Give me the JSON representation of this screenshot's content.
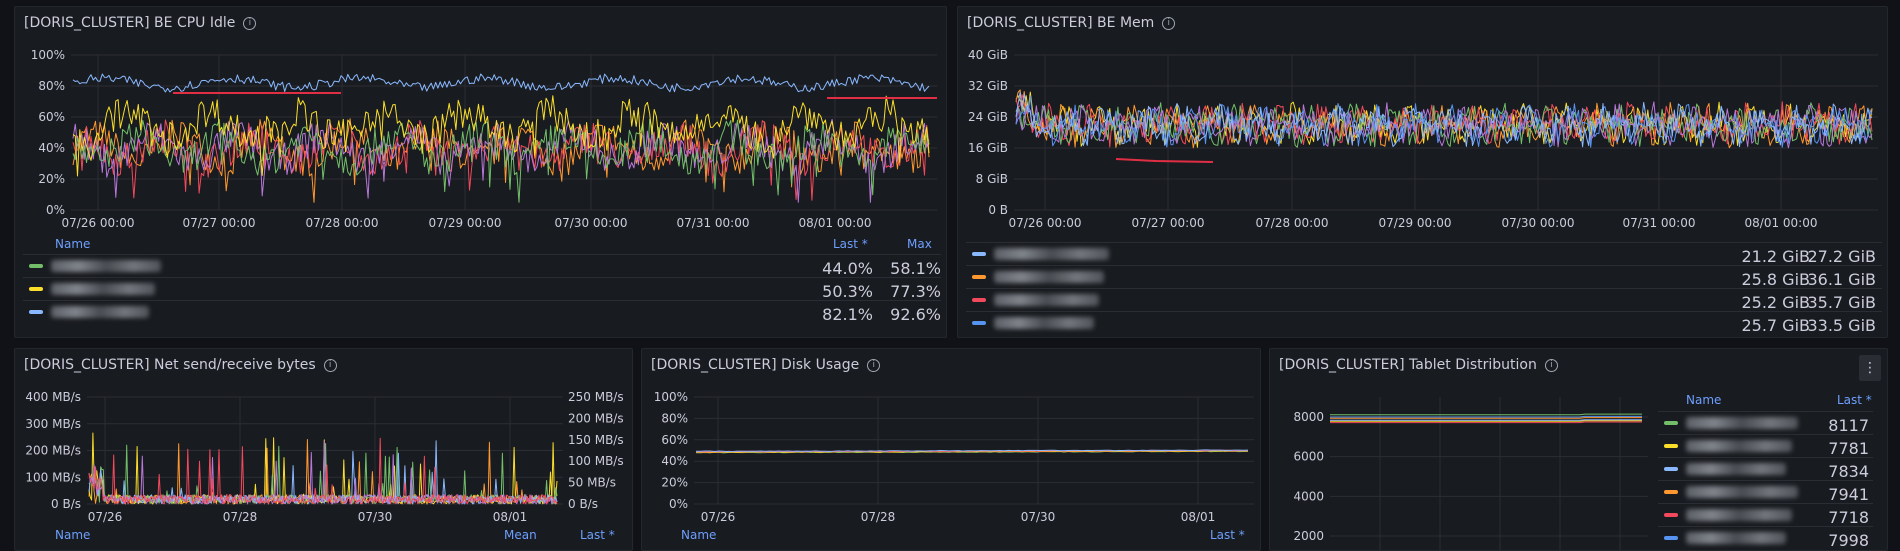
{
  "colors": {
    "green": "#73bf69",
    "yellow": "#fade2a",
    "blue": "#8ab8ff",
    "orange": "#ff9830",
    "red": "#f2495c",
    "blue2": "#5794f2",
    "purple": "#b877d9",
    "annot": "#e02f44"
  },
  "panels": {
    "cpu": {
      "title": "[DORIS_CLUSTER] BE CPU Idle",
      "yticks": [
        "100%",
        "80%",
        "60%",
        "40%",
        "20%",
        "0%"
      ],
      "xticks": [
        "07/26 00:00",
        "07/27 00:00",
        "07/28 00:00",
        "07/29 00:00",
        "07/30 00:00",
        "07/31 00:00",
        "08/01 00:00"
      ],
      "legend": {
        "name_header": "Name",
        "cols": [
          "Last *",
          "Max"
        ],
        "rows": [
          {
            "color": "#73bf69",
            "values": [
              "44.0%",
              "58.1%"
            ]
          },
          {
            "color": "#fade2a",
            "values": [
              "50.3%",
              "77.3%"
            ]
          },
          {
            "color": "#8ab8ff",
            "values": [
              "82.1%",
              "92.6%"
            ]
          }
        ]
      }
    },
    "mem": {
      "title": "[DORIS_CLUSTER] BE Mem",
      "yticks": [
        "40 GiB",
        "32 GiB",
        "24 GiB",
        "16 GiB",
        "8 GiB",
        "0 B"
      ],
      "xticks": [
        "07/26 00:00",
        "07/27 00:00",
        "07/28 00:00",
        "07/29 00:00",
        "07/30 00:00",
        "07/31 00:00",
        "08/01 00:00"
      ],
      "legend": {
        "rows": [
          {
            "color": "#8ab8ff",
            "values": [
              "21.2 GiB",
              "27.2 GiB"
            ]
          },
          {
            "color": "#ff9830",
            "values": [
              "25.8 GiB",
              "36.1 GiB"
            ]
          },
          {
            "color": "#f2495c",
            "values": [
              "25.2 GiB",
              "35.7 GiB"
            ]
          },
          {
            "color": "#5794f2",
            "values": [
              "25.7 GiB",
              "33.5 GiB"
            ]
          }
        ]
      }
    },
    "net": {
      "title": "[DORIS_CLUSTER] Net send/receive bytes",
      "yticks_left": [
        "400 MB/s",
        "300 MB/s",
        "200 MB/s",
        "100 MB/s",
        "0 B/s"
      ],
      "yticks_right": [
        "250 MB/s",
        "200 MB/s",
        "150 MB/s",
        "100 MB/s",
        "50 MB/s",
        "0 B/s"
      ],
      "xticks": [
        "07/26",
        "07/28",
        "07/30",
        "08/01"
      ],
      "legend": {
        "name_header": "Name",
        "cols": [
          "Mean",
          "Last *"
        ]
      }
    },
    "disk": {
      "title": "[DORIS_CLUSTER] Disk Usage",
      "yticks": [
        "100%",
        "80%",
        "60%",
        "40%",
        "20%",
        "0%"
      ],
      "xticks": [
        "07/26",
        "07/28",
        "07/30",
        "08/01"
      ],
      "legend": {
        "name_header": "Name",
        "cols": [
          "Last *"
        ]
      }
    },
    "tablet": {
      "title": "[DORIS_CLUSTER] Tablet Distribution",
      "yticks": [
        "8000",
        "6000",
        "4000",
        "2000"
      ],
      "menu_icon": "⋮",
      "legend": {
        "name_header": "Name",
        "cols": [
          "Last *"
        ],
        "rows": [
          {
            "color": "#73bf69",
            "values": [
              "8117"
            ]
          },
          {
            "color": "#fade2a",
            "values": [
              "7781"
            ]
          },
          {
            "color": "#8ab8ff",
            "values": [
              "7834"
            ]
          },
          {
            "color": "#ff9830",
            "values": [
              "7941"
            ]
          },
          {
            "color": "#f2495c",
            "values": [
              "7718"
            ]
          },
          {
            "color": "#5794f2",
            "values": [
              "7998"
            ]
          }
        ]
      }
    }
  }
}
